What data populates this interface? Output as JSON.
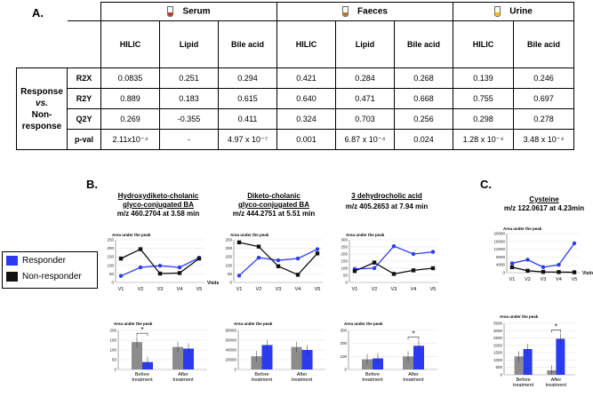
{
  "panel_labels": {
    "a": "A.",
    "b": "B.",
    "c": "C."
  },
  "table": {
    "groups": [
      "Serum",
      "Faeces",
      "Urine"
    ],
    "columns": [
      "HILIC",
      "Lipid",
      "Bile acid",
      "HILIC",
      "Lipid",
      "Bile acid",
      "HILIC",
      "Bile acid"
    ],
    "row_group_label": [
      "Response",
      "vs.",
      "Non-",
      "response"
    ],
    "rows": [
      {
        "label": "R2X",
        "values": [
          "0.0835",
          "0.251",
          "0.294",
          "0.421",
          "0.284",
          "0.268",
          "0.139",
          "0.246"
        ]
      },
      {
        "label": "R2Y",
        "values": [
          "0.889",
          "0.183",
          "0.615",
          "0.640",
          "0.471",
          "0.668",
          "0.755",
          "0.697"
        ]
      },
      {
        "label": "Q2Y",
        "values": [
          "0.269",
          "-0.355",
          "0.411",
          "0.324",
          "0.703",
          "0.256",
          "0.298",
          "0.278"
        ]
      },
      {
        "label": "p-val",
        "values": [
          "2.11x10⁻⁴",
          "-",
          "4.97 x 10⁻⁷",
          "0.001",
          "6.87 x 10⁻⁴",
          "0.024",
          "1.28 x 10⁻⁴",
          "3.48 x 10⁻⁴"
        ]
      }
    ]
  },
  "legend": {
    "responder": "Responder",
    "non_responder": "Non-responder"
  },
  "colors": {
    "responder": "#2b3cf0",
    "non_responder": "#111111",
    "bar_gray": "#8c8c8c",
    "bar_blue": "#2b3cf0"
  },
  "charts": [
    {
      "title": "Hydroxydiketo-cholanic",
      "title2": "glyco-conjugated BA",
      "mz": "m/z 460.2704 at 3.58 min"
    },
    {
      "title": "Diketo-cholanic",
      "title2": "glyco-conjugated BA",
      "mz": "m/z 444.2751 at 5.51 min"
    },
    {
      "title": "3 dehydrocholic acid",
      "title2": "",
      "mz": "m/z 405.2653 at 7.94 min"
    },
    {
      "title": "Cysteine",
      "title2": "",
      "mz": "m/z 122.0617 at 4.23min"
    }
  ],
  "chart_data": [
    {
      "type": "line",
      "ylabel": "Area under the peak",
      "xlabel": "Visits",
      "categories": [
        "V1",
        "V2",
        "V3",
        "V4",
        "V5"
      ],
      "yticks": [
        "0",
        "50",
        "100",
        "150",
        "200",
        "250"
      ],
      "ylim": [
        0,
        250
      ],
      "series": [
        {
          "name": "Responder",
          "values": [
            38,
            88,
            98,
            88,
            145
          ]
        },
        {
          "name": "Non-responder",
          "values": [
            140,
            195,
            52,
            55,
            140
          ]
        }
      ]
    },
    {
      "type": "line",
      "ylabel": "Area under the peak",
      "xlabel": "",
      "categories": [
        "V1",
        "V2",
        "V3",
        "V4",
        "V5"
      ],
      "yticks": [
        "0",
        "50",
        "100",
        "150",
        "200",
        "250"
      ],
      "ylim": [
        0,
        250
      ],
      "series": [
        {
          "name": "Responder",
          "values": [
            40,
            145,
            130,
            140,
            195
          ]
        },
        {
          "name": "Non-responder",
          "values": [
            235,
            210,
            95,
            45,
            170
          ]
        }
      ]
    },
    {
      "type": "line",
      "ylabel": "Area under the peak",
      "xlabel": "",
      "categories": [
        "V1",
        "V2",
        "V3",
        "V4",
        "V5"
      ],
      "yticks": [
        "0",
        "50",
        "100",
        "150",
        "200",
        "250",
        "300"
      ],
      "ylim": [
        0,
        300
      ],
      "series": [
        {
          "name": "Responder",
          "values": [
            95,
            100,
            255,
            200,
            215
          ]
        },
        {
          "name": "Non-responder",
          "values": [
            80,
            140,
            60,
            85,
            100
          ]
        }
      ]
    },
    {
      "type": "line",
      "ylabel": "Area under the peak",
      "xlabel": "Visits",
      "categories": [
        "V1",
        "V2",
        "V3",
        "V4",
        "V5"
      ],
      "yticks": [
        "0",
        "4000",
        "8000",
        "12000",
        "16000",
        "20000"
      ],
      "ylim": [
        0,
        20000
      ],
      "series": [
        {
          "name": "Responder",
          "values": [
            4800,
            6600,
            2800,
            4000,
            15000
          ]
        },
        {
          "name": "Non-responder",
          "values": [
            2800,
            1000,
            400,
            300,
            200
          ]
        }
      ]
    },
    {
      "type": "bar",
      "ylabel": "Area under the peak",
      "categories": [
        "Before treatment",
        "After treatment"
      ],
      "yticks": [
        "0",
        "50",
        "100",
        "150",
        "200"
      ],
      "ylim": [
        0,
        200
      ],
      "significance": "*",
      "series": [
        {
          "name": "Non-responder",
          "values": [
            140,
            115
          ]
        },
        {
          "name": "Responder",
          "values": [
            38,
            107
          ]
        }
      ]
    },
    {
      "type": "bar",
      "ylabel": "Area under the peak",
      "categories": [
        "Before treatment",
        "After treatment"
      ],
      "yticks": [
        "0",
        "20000",
        "40000",
        "60000",
        "80000"
      ],
      "ylim": [
        0,
        80000
      ],
      "significance": "",
      "series": [
        {
          "name": "Non-responder",
          "values": [
            27000,
            46000
          ]
        },
        {
          "name": "Responder",
          "values": [
            50000,
            40000
          ]
        }
      ]
    },
    {
      "type": "bar",
      "ylabel": "Area under the peak",
      "categories": [
        "Before treatment",
        "After treatment"
      ],
      "yticks": [
        "0",
        "100",
        "200",
        "300"
      ],
      "ylim": [
        0,
        300
      ],
      "significance": "*",
      "series": [
        {
          "name": "Non-responder",
          "values": [
            78,
            100
          ]
        },
        {
          "name": "Responder",
          "values": [
            85,
            182
          ]
        }
      ]
    },
    {
      "type": "bar",
      "ylabel": "Area under the peak",
      "categories": [
        "Before treatment",
        "After treatment"
      ],
      "yticks": [
        "0",
        "500",
        "1000",
        "1500",
        "2000",
        "2500",
        "3000",
        "3500"
      ],
      "ylim": [
        0,
        3500
      ],
      "significance": "*",
      "series": [
        {
          "name": "Non-responder",
          "values": [
            1250,
            300
          ]
        },
        {
          "name": "Responder",
          "values": [
            1750,
            2450
          ]
        }
      ]
    }
  ]
}
